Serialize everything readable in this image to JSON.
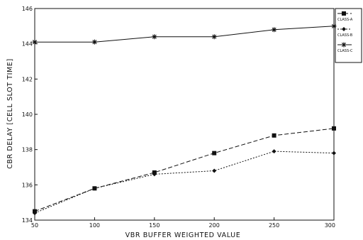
{
  "chart_data": {
    "type": "line",
    "xlabel": "VBR BUFFER WEIGHTED VALUE",
    "ylabel": "CBR DELAY [CELL SLOT TIME]",
    "x": [
      50,
      100,
      150,
      200,
      250,
      300
    ],
    "xlim": [
      50,
      300
    ],
    "ylim": [
      134,
      146
    ],
    "x_ticks": [
      "50",
      "100",
      "150",
      "200",
      "250",
      "300"
    ],
    "y_ticks": [
      "134",
      "136",
      "138",
      "140",
      "142",
      "144",
      "146"
    ],
    "grid": false,
    "legend_position": "right, outside plot area at top",
    "series": [
      {
        "name": "CLASS-A",
        "marker": "square",
        "values": [
          134.5,
          135.8,
          136.7,
          137.8,
          138.8,
          139.2
        ]
      },
      {
        "name": "CLASS-B",
        "marker": "diamond",
        "values": [
          134.4,
          135.8,
          136.6,
          136.8,
          137.9,
          137.8
        ]
      },
      {
        "name": "CLASS-C",
        "marker": "star",
        "values": [
          144.1,
          144.1,
          144.4,
          144.4,
          144.8,
          145.0
        ]
      }
    ]
  }
}
